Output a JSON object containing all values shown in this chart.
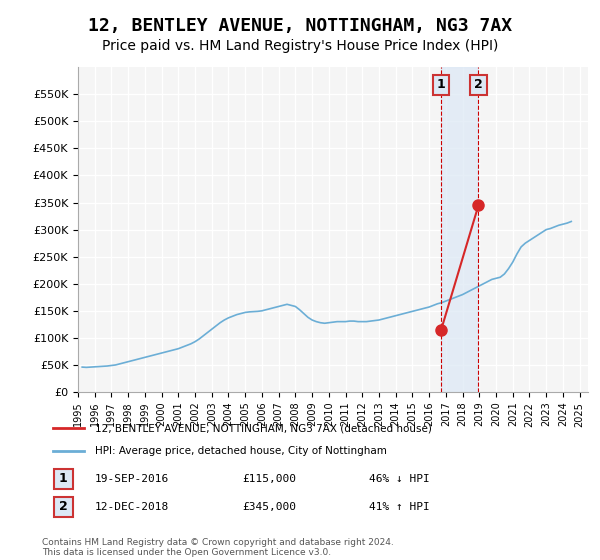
{
  "title": "12, BENTLEY AVENUE, NOTTINGHAM, NG3 7AX",
  "subtitle": "Price paid vs. HM Land Registry's House Price Index (HPI)",
  "title_fontsize": 13,
  "subtitle_fontsize": 10,
  "background_color": "#ffffff",
  "plot_bg_color": "#f5f5f5",
  "grid_color": "#ffffff",
  "hpi_color": "#6baed6",
  "price_color": "#d62728",
  "annotation_box_color": "#c8d8e8",
  "annotation_vline_color": "#cc0000",
  "ylabel": "",
  "ylim": [
    0,
    600000
  ],
  "ytick_values": [
    0,
    50000,
    100000,
    150000,
    200000,
    250000,
    300000,
    350000,
    400000,
    450000,
    500000,
    550000
  ],
  "ytick_labels": [
    "£0",
    "£50K",
    "£100K",
    "£150K",
    "£200K",
    "£250K",
    "£300K",
    "£350K",
    "£400K",
    "£450K",
    "£500K",
    "£550K"
  ],
  "xlim_start": 1995.0,
  "xlim_end": 2025.5,
  "xtick_years": [
    1995,
    1996,
    1997,
    1998,
    1999,
    2000,
    2001,
    2002,
    2003,
    2004,
    2005,
    2006,
    2007,
    2008,
    2009,
    2010,
    2011,
    2012,
    2013,
    2014,
    2015,
    2016,
    2017,
    2018,
    2019,
    2020,
    2021,
    2022,
    2023,
    2024,
    2025
  ],
  "transaction1_x": 2016.72,
  "transaction1_y": 115000,
  "transaction1_label": "1",
  "transaction1_date": "19-SEP-2016",
  "transaction1_price": "£115,000",
  "transaction1_hpi": "46% ↓ HPI",
  "transaction2_x": 2018.95,
  "transaction2_y": 345000,
  "transaction2_label": "2",
  "transaction2_date": "12-DEC-2018",
  "transaction2_price": "£345,000",
  "transaction2_hpi": "41% ↑ HPI",
  "legend_line1": "12, BENTLEY AVENUE, NOTTINGHAM, NG3 7AX (detached house)",
  "legend_line2": "HPI: Average price, detached house, City of Nottingham",
  "footnote": "Contains HM Land Registry data © Crown copyright and database right 2024.\nThis data is licensed under the Open Government Licence v3.0.",
  "hpi_data_x": [
    1995.25,
    1995.5,
    1995.75,
    1996.0,
    1996.25,
    1996.5,
    1996.75,
    1997.0,
    1997.25,
    1997.5,
    1997.75,
    1998.0,
    1998.25,
    1998.5,
    1998.75,
    1999.0,
    1999.25,
    1999.5,
    1999.75,
    2000.0,
    2000.25,
    2000.5,
    2000.75,
    2001.0,
    2001.25,
    2001.5,
    2001.75,
    2002.0,
    2002.25,
    2002.5,
    2002.75,
    2003.0,
    2003.25,
    2003.5,
    2003.75,
    2004.0,
    2004.25,
    2004.5,
    2004.75,
    2005.0,
    2005.25,
    2005.5,
    2005.75,
    2006.0,
    2006.25,
    2006.5,
    2006.75,
    2007.0,
    2007.25,
    2007.5,
    2007.75,
    2008.0,
    2008.25,
    2008.5,
    2008.75,
    2009.0,
    2009.25,
    2009.5,
    2009.75,
    2010.0,
    2010.25,
    2010.5,
    2010.75,
    2011.0,
    2011.25,
    2011.5,
    2011.75,
    2012.0,
    2012.25,
    2012.5,
    2012.75,
    2013.0,
    2013.25,
    2013.5,
    2013.75,
    2014.0,
    2014.25,
    2014.5,
    2014.75,
    2015.0,
    2015.25,
    2015.5,
    2015.75,
    2016.0,
    2016.25,
    2016.5,
    2016.75,
    2017.0,
    2017.25,
    2017.5,
    2017.75,
    2018.0,
    2018.25,
    2018.5,
    2018.75,
    2019.0,
    2019.25,
    2019.5,
    2019.75,
    2020.0,
    2020.25,
    2020.5,
    2020.75,
    2021.0,
    2021.25,
    2021.5,
    2021.75,
    2022.0,
    2022.25,
    2022.5,
    2022.75,
    2023.0,
    2023.25,
    2023.5,
    2023.75,
    2024.0,
    2024.25,
    2024.5
  ],
  "hpi_data_y": [
    46000,
    45500,
    46000,
    46500,
    47000,
    47500,
    48000,
    49000,
    50000,
    52000,
    54000,
    56000,
    58000,
    60000,
    62000,
    64000,
    66000,
    68000,
    70000,
    72000,
    74000,
    76000,
    78000,
    80000,
    83000,
    86000,
    89000,
    93000,
    98000,
    104000,
    110000,
    116000,
    122000,
    128000,
    133000,
    137000,
    140000,
    143000,
    145000,
    147000,
    148000,
    148500,
    149000,
    150000,
    152000,
    154000,
    156000,
    158000,
    160000,
    162000,
    160000,
    158000,
    152000,
    145000,
    138000,
    133000,
    130000,
    128000,
    127000,
    128000,
    129000,
    130000,
    130000,
    130000,
    131000,
    131000,
    130000,
    130000,
    130000,
    131000,
    132000,
    133000,
    135000,
    137000,
    139000,
    141000,
    143000,
    145000,
    147000,
    149000,
    151000,
    153000,
    155000,
    157000,
    160000,
    163000,
    165000,
    168000,
    171000,
    174000,
    177000,
    180000,
    184000,
    188000,
    192000,
    196000,
    200000,
    204000,
    208000,
    210000,
    212000,
    218000,
    228000,
    240000,
    255000,
    268000,
    275000,
    280000,
    285000,
    290000,
    295000,
    300000,
    302000,
    305000,
    308000,
    310000,
    312000,
    315000
  ],
  "sale_marker_color": "#d62728",
  "annotation_shade_color": "#dce8f5"
}
